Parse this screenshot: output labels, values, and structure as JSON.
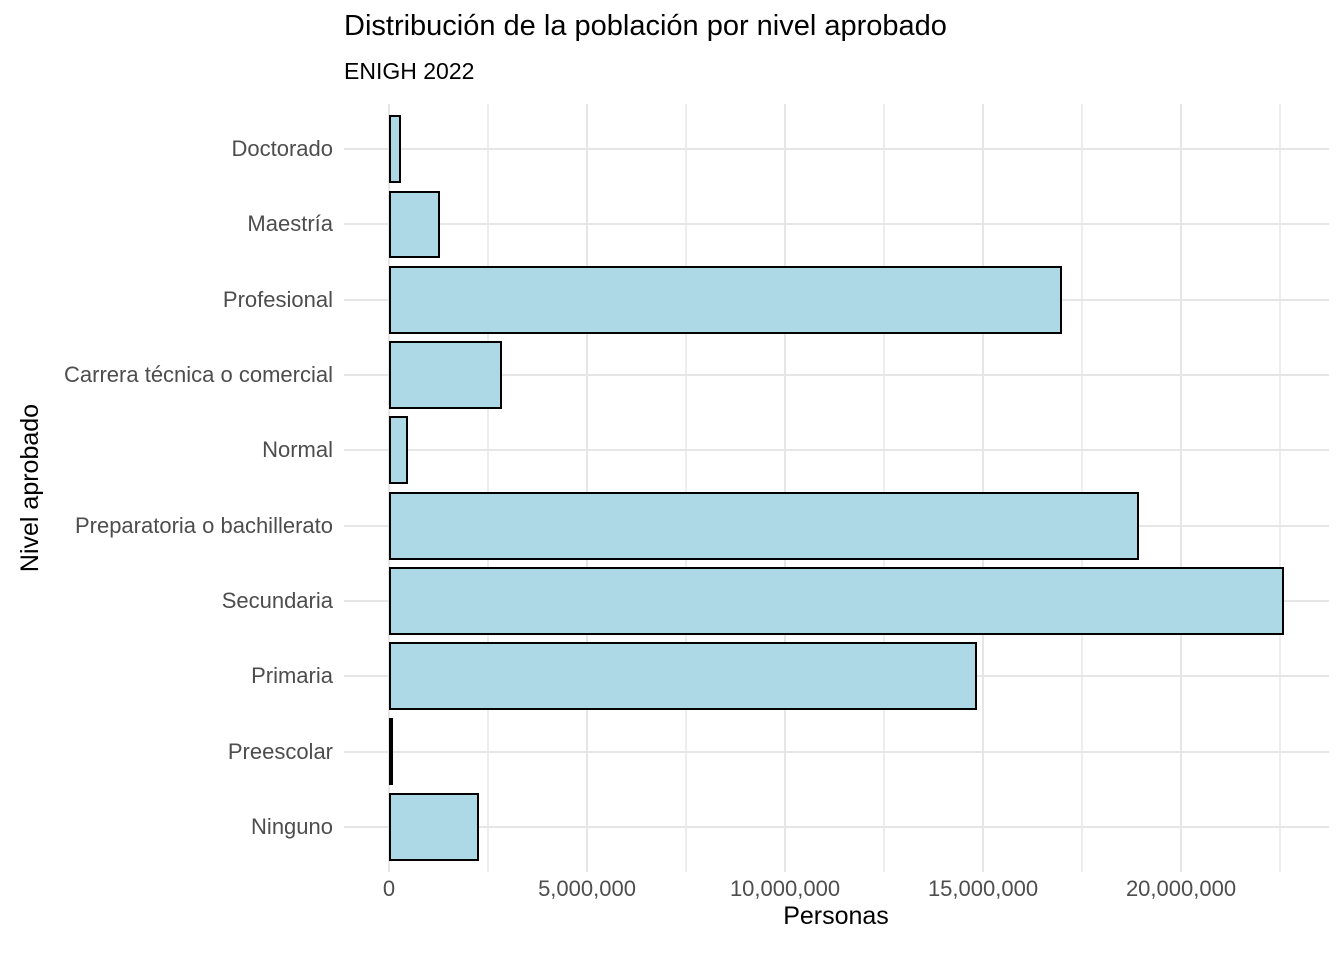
{
  "chart_data": {
    "type": "bar",
    "orientation": "horizontal",
    "title": "Distribución de la población por nivel aprobado",
    "subtitle": "ENIGH 2022",
    "xlabel": "Personas",
    "ylabel": "Nivel aprobado",
    "categories": [
      "Doctorado",
      "Maestría",
      "Profesional",
      "Carrera técnica o comercial",
      "Normal",
      "Preparatoria o bachillerato",
      "Secundaria",
      "Primaria",
      "Preescolar",
      "Ninguno"
    ],
    "values": [
      300000,
      1300000,
      17000000,
      2850000,
      470000,
      18950000,
      22600000,
      14850000,
      40000,
      2270000
    ],
    "x_ticks": [
      {
        "value": 0,
        "label": "0"
      },
      {
        "value": 5000000,
        "label": "5,000,000"
      },
      {
        "value": 10000000,
        "label": "10,000,000"
      },
      {
        "value": 15000000,
        "label": "15,000,000"
      },
      {
        "value": 20000000,
        "label": "20,000,000"
      }
    ],
    "x_minor_ticks": [
      2500000,
      7500000,
      12500000,
      17500000,
      22500000
    ],
    "xlim": [
      0,
      22600000
    ],
    "grid": true,
    "legend": "none",
    "bar_width_fraction": 0.9,
    "colors": {
      "bar_fill": "#ADD8E6",
      "bar_border": "#000000",
      "grid_major": "#E6E6E6",
      "grid_minor": "#EDEDED",
      "axis_text": "#4D4D4D",
      "title_text": "#000000",
      "background": "#FFFFFF"
    }
  }
}
